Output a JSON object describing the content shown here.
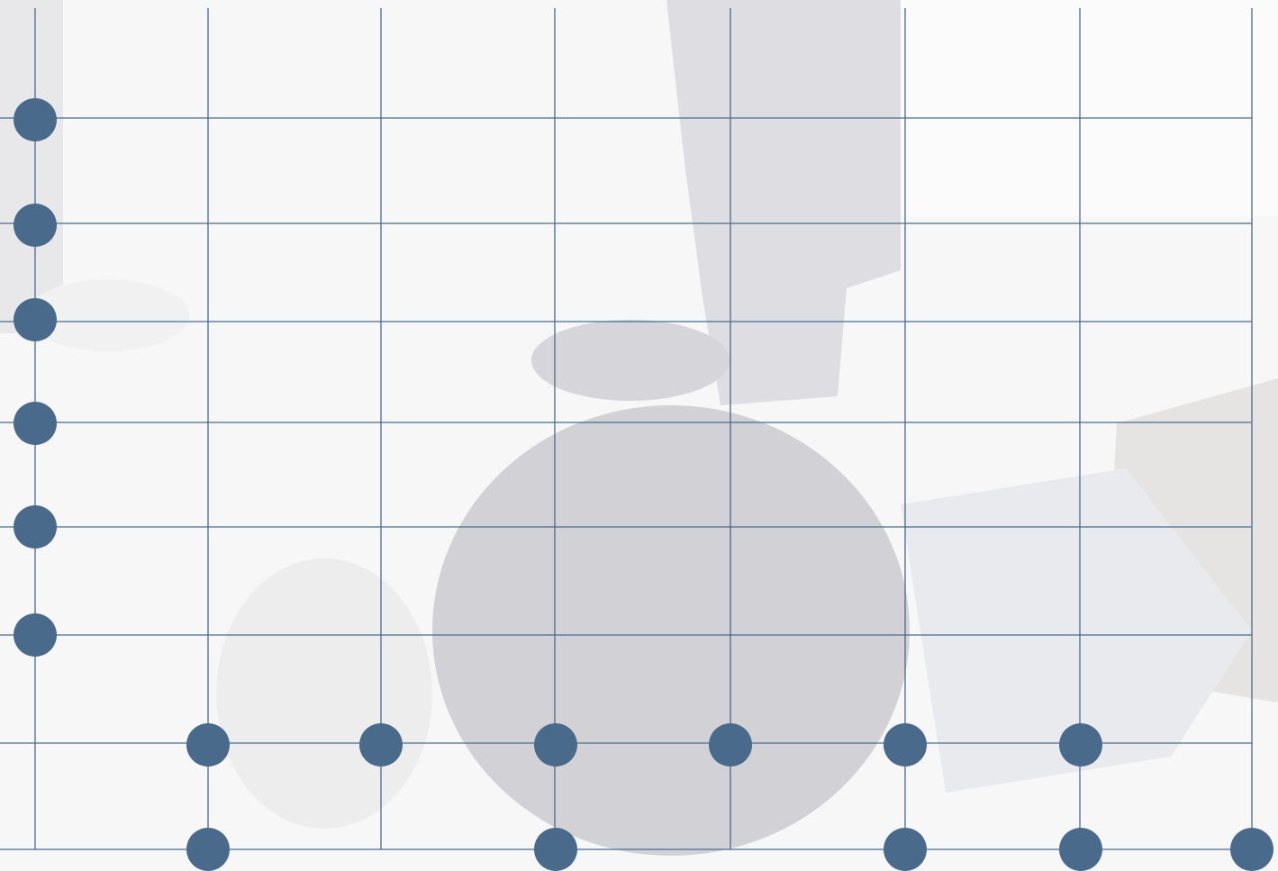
{
  "colors": {
    "background": "#f6f6f6",
    "photo_shade_light": "#ececec",
    "photo_shade_mid": "#dcdcdc",
    "photo_shade_dark": "#cfcfd3",
    "grid_line": "#4a6a8c",
    "node": "#4a6a8c"
  },
  "background_photo": {
    "description_icon": "faded-photo-background"
  },
  "grid": {
    "vertical_line_count": 8,
    "horizontal_line_count": 8
  },
  "nodes": {
    "left_column_count": 6,
    "middle_row_count": 6,
    "bottom_row_count": 5
  }
}
